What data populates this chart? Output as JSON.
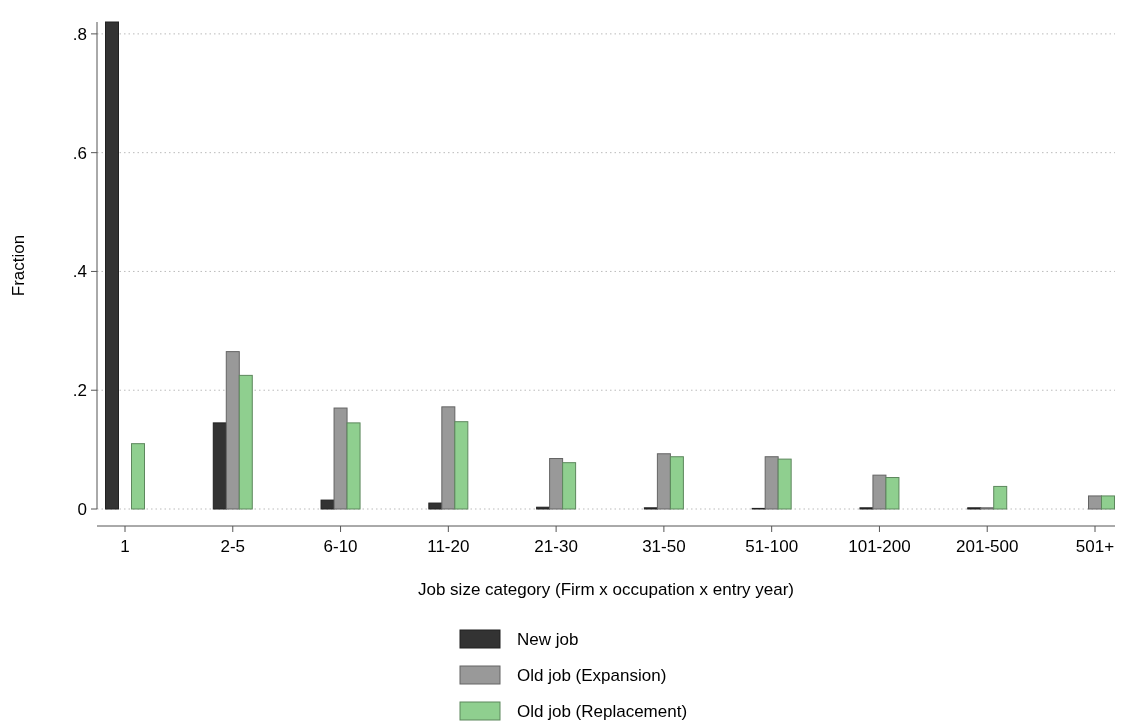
{
  "chart_data": {
    "type": "bar",
    "xlabel": "Job size category (Firm x occupation x entry year)",
    "ylabel": "Fraction",
    "categories": [
      "1",
      "2-5",
      "6-10",
      "11-20",
      "21-30",
      "31-50",
      "51-100",
      "101-200",
      "201-500",
      "501+"
    ],
    "series": [
      {
        "name": "New job",
        "color": "#333333",
        "values": [
          0.82,
          0.145,
          0.015,
          0.01,
          0.003,
          0.002,
          0.001,
          0.002,
          0.002,
          0
        ]
      },
      {
        "name": "Old job (Expansion)",
        "color": "#999999",
        "values": [
          null,
          0.265,
          0.17,
          0.172,
          0.085,
          0.093,
          0.088,
          0.057,
          0.002,
          0.022
        ]
      },
      {
        "name": "Old job (Replacement)",
        "color": "#8fcf8f",
        "values": [
          0.11,
          0.225,
          0.145,
          0.147,
          0.078,
          0.088,
          0.084,
          0.053,
          0.038,
          0.022
        ]
      }
    ],
    "ylim": [
      0,
      0.82
    ],
    "yticks": [
      {
        "value": 0,
        "label": "0"
      },
      {
        "value": 0.2,
        "label": ".2"
      },
      {
        "value": 0.4,
        "label": ".4"
      },
      {
        "value": 0.6,
        "label": ".6"
      },
      {
        "value": 0.8,
        "label": ".8"
      }
    ],
    "grid": "y",
    "legend": "bottom"
  }
}
